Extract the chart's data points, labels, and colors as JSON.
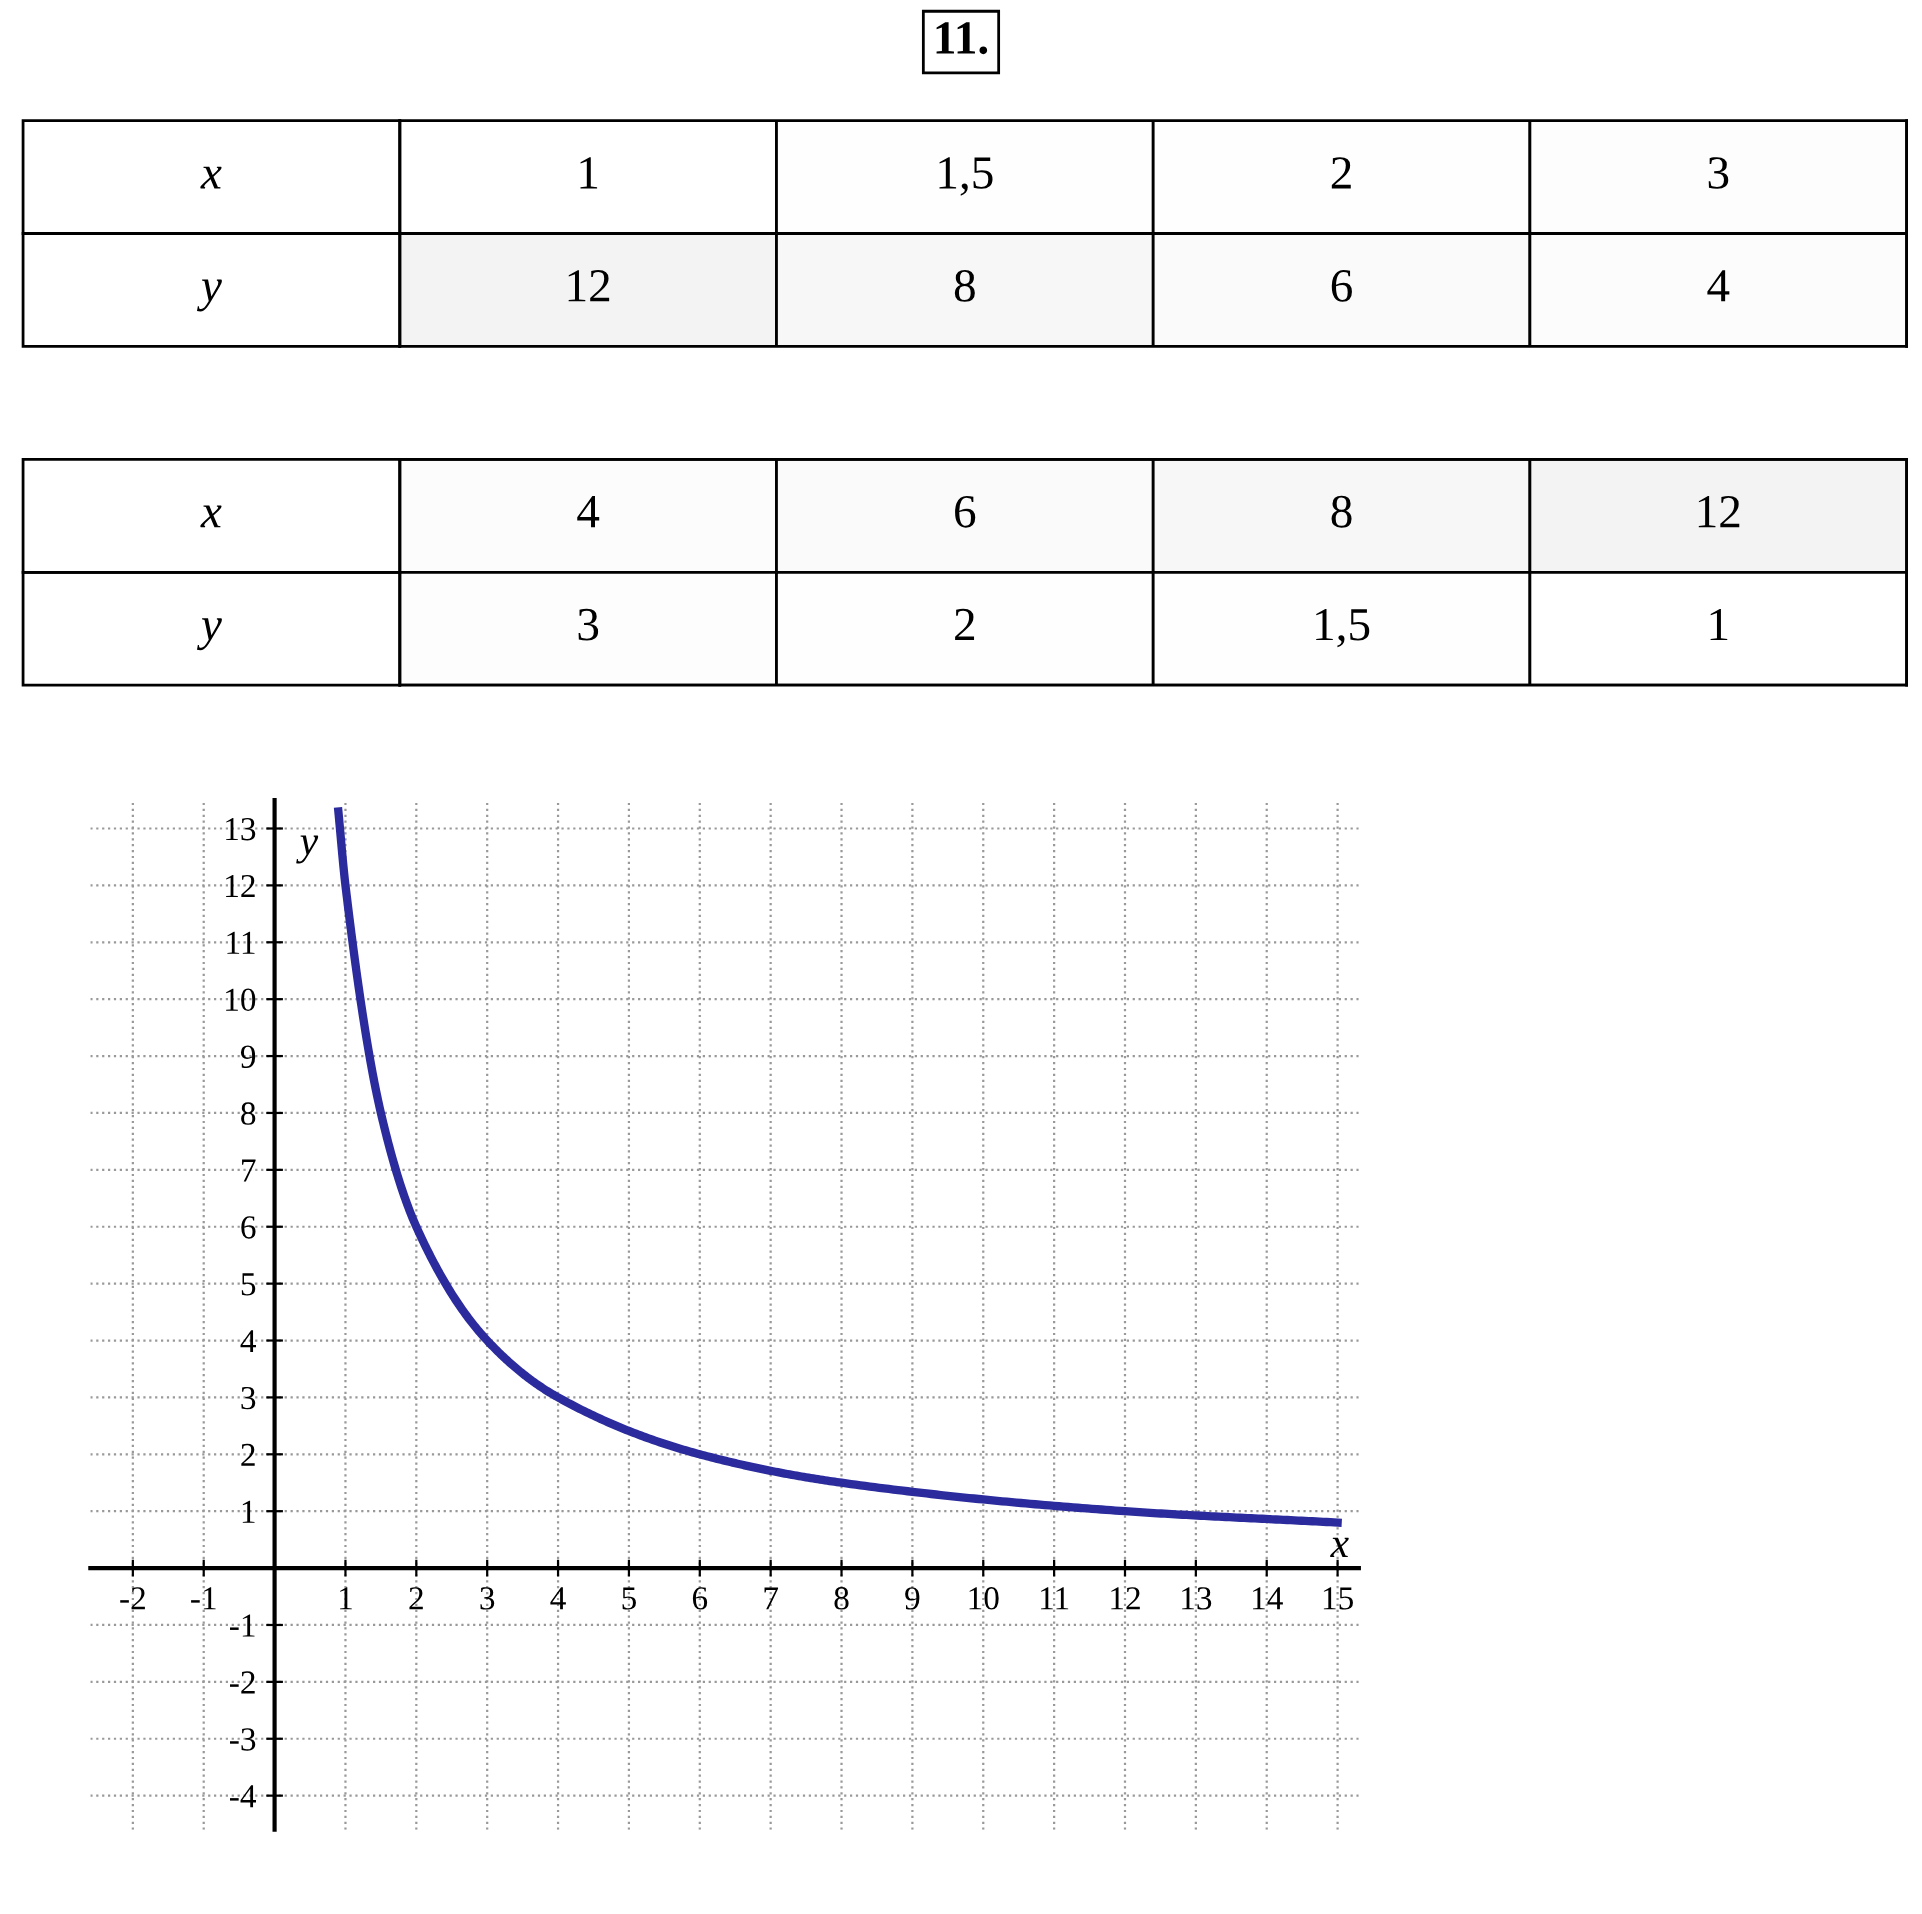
{
  "chart_data": [
    {
      "type": "heatmap",
      "title": "11.",
      "categories": [
        null,
        null,
        null,
        null
      ],
      "y_categories": [
        "x",
        "y"
      ],
      "cells": [
        [
          1,
          1.5,
          2,
          3
        ],
        [
          12,
          8,
          6,
          4
        ]
      ],
      "cell_labels": [
        [
          "1",
          "1,5",
          "2",
          "3"
        ],
        [
          "12",
          "8",
          "6",
          "4"
        ]
      ]
    },
    {
      "type": "heatmap",
      "categories": [
        null,
        null,
        null,
        null
      ],
      "y_categories": [
        "x",
        "y"
      ],
      "cells": [
        [
          4,
          6,
          8,
          12
        ],
        [
          3,
          2,
          1.5,
          1
        ]
      ],
      "cell_labels": [
        [
          "4",
          "6",
          "8",
          "12"
        ],
        [
          "3",
          "2",
          "1,5",
          "1"
        ]
      ]
    },
    {
      "type": "line",
      "xlabel": "x",
      "ylabel": "y",
      "x": [
        0.9,
        1,
        1.5,
        2,
        3,
        4,
        6,
        8,
        12,
        15
      ],
      "series": [
        {
          "color": "#2b2b9e",
          "values": [
            13.3,
            12,
            8,
            6,
            4,
            3,
            2,
            1.5,
            1,
            0.8
          ]
        }
      ],
      "xlim": [
        -2.6,
        15.3
      ],
      "ylim": [
        -4.6,
        13.5
      ],
      "xticks": [
        -2,
        -1,
        1,
        2,
        3,
        4,
        5,
        6,
        7,
        8,
        9,
        10,
        11,
        12,
        13,
        14,
        15
      ],
      "yticks": [
        -4,
        -3,
        -2,
        -1,
        1,
        2,
        3,
        4,
        5,
        6,
        7,
        8,
        9,
        10,
        11,
        12,
        13
      ],
      "grid": true,
      "marker": "none",
      "line_style": "solid"
    }
  ]
}
